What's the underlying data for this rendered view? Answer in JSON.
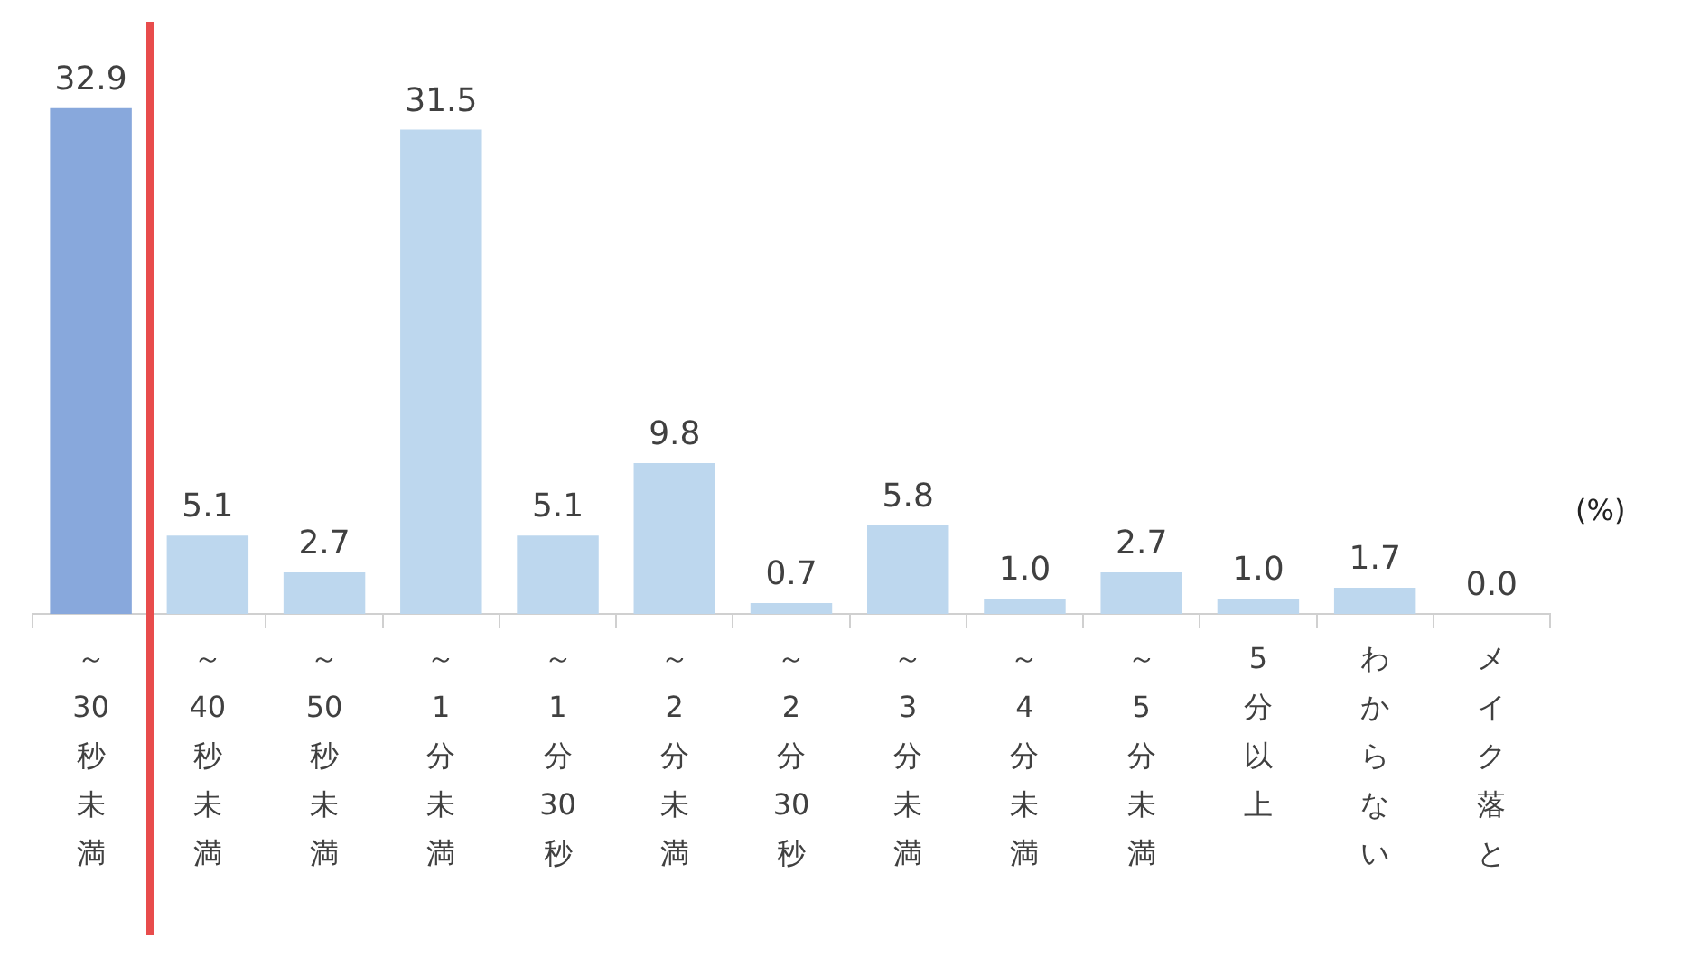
{
  "chart_data": {
    "type": "bar",
    "categories": [
      "～30秒未満",
      "～40秒未満",
      "～50秒未満",
      "～1分未満",
      "～1分30秒",
      "～2分未満",
      "～2分30秒",
      "～3分未満",
      "～4分未満",
      "～5分未満",
      "5分以上",
      "わからない",
      "メイク落と"
    ],
    "values": [
      32.9,
      5.1,
      2.7,
      31.5,
      5.1,
      9.8,
      0.7,
      5.8,
      1.0,
      2.7,
      1.0,
      1.7,
      0.0
    ],
    "value_labels": [
      "32.9",
      "5.1",
      "2.7",
      "31.5",
      "5.1",
      "9.8",
      "0.7",
      "5.8",
      "1.0",
      "2.7",
      "1.0",
      "1.7",
      "0.0"
    ],
    "colors": [
      "#88a8dc",
      "#bdd7ee",
      "#bdd7ee",
      "#bdd7ee",
      "#bdd7ee",
      "#bdd7ee",
      "#bdd7ee",
      "#bdd7ee",
      "#bdd7ee",
      "#bdd7ee",
      "#bdd7ee",
      "#bdd7ee",
      "#bdd7ee"
    ],
    "annotations": [
      "(%)"
    ],
    "grid": false,
    "legend": false
  }
}
